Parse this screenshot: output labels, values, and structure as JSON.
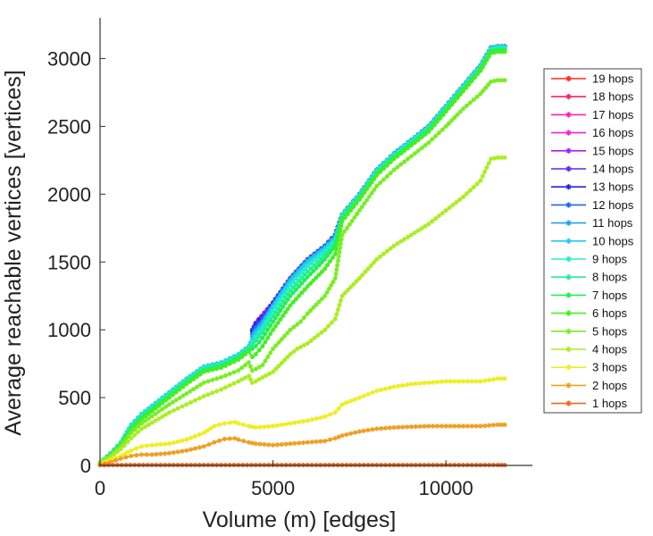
{
  "chart_data": {
    "type": "line",
    "title": "",
    "xlabel": "Volume (m) [edges]",
    "ylabel": "Average reachable vertices [vertices]",
    "xlim": [
      0,
      12500
    ],
    "ylim": [
      0,
      3300
    ],
    "xticks": [
      0,
      5000,
      10000
    ],
    "yticks": [
      0,
      500,
      1000,
      1500,
      2000,
      2500,
      3000
    ],
    "grid": false,
    "legend_position": "right",
    "marker": "asterisk",
    "series": [
      {
        "name": "19 hops",
        "color": "#ff2a1a",
        "x": [
          4500,
          5000,
          5500,
          6000,
          6500,
          6800,
          7000,
          7500,
          8000,
          8500,
          9000,
          9500,
          10000,
          10500,
          11000,
          11300,
          11500,
          11700
        ],
        "y": [
          1050,
          1200,
          1380,
          1520,
          1620,
          1700,
          1850,
          2000,
          2180,
          2300,
          2400,
          2500,
          2650,
          2800,
          2950,
          3080,
          3090,
          3090
        ]
      },
      {
        "name": "18 hops",
        "color": "#ff2060",
        "x": [
          4500,
          5000,
          5500,
          6000,
          6500,
          6800,
          7000,
          7500,
          8000,
          8500,
          9000,
          9500,
          10000,
          10500,
          11000,
          11300,
          11500,
          11700
        ],
        "y": [
          1050,
          1200,
          1380,
          1520,
          1620,
          1700,
          1850,
          2000,
          2180,
          2300,
          2400,
          2500,
          2650,
          2800,
          2950,
          3080,
          3090,
          3090
        ]
      },
      {
        "name": "17 hops",
        "color": "#ff22aa",
        "x": [
          4500,
          5000,
          5500,
          6000,
          6500,
          6800,
          7000,
          7500,
          8000,
          8500,
          9000,
          9500,
          10000,
          10500,
          11000,
          11300,
          11500,
          11700
        ],
        "y": [
          1050,
          1200,
          1380,
          1520,
          1620,
          1700,
          1850,
          2000,
          2180,
          2300,
          2400,
          2500,
          2650,
          2800,
          2950,
          3080,
          3090,
          3090
        ]
      },
      {
        "name": "16 hops",
        "color": "#ee22dd",
        "x": [
          4500,
          5000,
          5500,
          6000,
          6500,
          6800,
          7000,
          7500,
          8000,
          8500,
          9000,
          9500,
          10000,
          10500,
          11000,
          11300,
          11500,
          11700
        ],
        "y": [
          1050,
          1200,
          1380,
          1520,
          1620,
          1700,
          1850,
          2000,
          2180,
          2300,
          2400,
          2500,
          2650,
          2800,
          2950,
          3080,
          3090,
          3090
        ]
      },
      {
        "name": "15 hops",
        "color": "#aa22ee",
        "x": [
          4500,
          5000,
          5500,
          6000,
          6500,
          6800,
          7000,
          7500,
          8000,
          8500,
          9000,
          9500,
          10000,
          10500,
          11000,
          11300,
          11500,
          11700
        ],
        "y": [
          1050,
          1200,
          1380,
          1520,
          1620,
          1700,
          1850,
          2000,
          2180,
          2300,
          2400,
          2500,
          2650,
          2800,
          2950,
          3080,
          3090,
          3090
        ]
      },
      {
        "name": "14 hops",
        "color": "#6622ee",
        "x": [
          4400,
          4500,
          4600,
          4700,
          4800,
          5000,
          5500,
          6000,
          6500,
          6800,
          7000,
          7500,
          8000,
          8500,
          9000,
          9500,
          10000,
          10500,
          11000,
          11300,
          11500,
          11700
        ],
        "y": [
          1000,
          1050,
          1080,
          1100,
          1130,
          1200,
          1380,
          1520,
          1620,
          1700,
          1850,
          2000,
          2180,
          2300,
          2400,
          2500,
          2650,
          2800,
          2950,
          3080,
          3090,
          3090
        ]
      },
      {
        "name": "13 hops",
        "color": "#2222ee",
        "x": [
          4400,
          4500,
          4600,
          4700,
          4800,
          5000,
          5500,
          6000,
          6500,
          6800,
          7000,
          7500,
          8000,
          8500,
          9000,
          9500,
          10000,
          10500,
          11000,
          11300,
          11500,
          11700
        ],
        "y": [
          990,
          1040,
          1070,
          1090,
          1120,
          1200,
          1380,
          1520,
          1620,
          1700,
          1850,
          2000,
          2180,
          2300,
          2400,
          2500,
          2650,
          2800,
          2950,
          3080,
          3090,
          3090
        ]
      },
      {
        "name": "12 hops",
        "color": "#2266ee",
        "x": [
          4400,
          4500,
          4700,
          5000,
          5500,
          6000,
          6500,
          6800,
          7000,
          7500,
          8000,
          8500,
          9000,
          9500,
          10000,
          10500,
          11000,
          11300,
          11500,
          11700
        ],
        "y": [
          970,
          1020,
          1080,
          1190,
          1380,
          1520,
          1620,
          1700,
          1850,
          2000,
          2180,
          2300,
          2400,
          2500,
          2650,
          2800,
          2950,
          3080,
          3090,
          3090
        ]
      },
      {
        "name": "11 hops",
        "color": "#22a0ee",
        "x": [
          4400,
          4500,
          4700,
          5000,
          5500,
          6000,
          6500,
          6800,
          7000,
          7500,
          8000,
          8500,
          9000,
          9500,
          10000,
          10500,
          11000,
          11300,
          11500,
          11700
        ],
        "y": [
          950,
          1000,
          1060,
          1180,
          1370,
          1510,
          1610,
          1690,
          1850,
          2000,
          2180,
          2300,
          2400,
          2500,
          2650,
          2800,
          2950,
          3080,
          3090,
          3090
        ]
      },
      {
        "name": "10 hops",
        "color": "#22ccee",
        "x": [
          0,
          300,
          600,
          900,
          1200,
          1600,
          2000,
          2500,
          3000,
          3500,
          4000,
          4300,
          4400,
          4500,
          4700,
          5000,
          5500,
          6000,
          6500,
          6800,
          7000,
          7500,
          8000,
          8500,
          9000,
          9500,
          10000,
          10500,
          11000,
          11300,
          11500,
          11700
        ],
        "y": [
          20,
          90,
          170,
          300,
          380,
          460,
          540,
          640,
          730,
          760,
          820,
          880,
          930,
          980,
          1040,
          1170,
          1360,
          1500,
          1600,
          1680,
          1850,
          2000,
          2180,
          2300,
          2400,
          2500,
          2650,
          2800,
          2950,
          3080,
          3090,
          3090
        ]
      },
      {
        "name": "9 hops",
        "color": "#22eecc",
        "x": [
          0,
          300,
          600,
          900,
          1200,
          1600,
          2000,
          2500,
          3000,
          3500,
          4000,
          4300,
          4400,
          4500,
          4700,
          5000,
          5500,
          6000,
          6500,
          6800,
          7000,
          7500,
          8000,
          8500,
          9000,
          9500,
          10000,
          10500,
          11000,
          11300,
          11500,
          11700
        ],
        "y": [
          20,
          85,
          165,
          290,
          370,
          450,
          530,
          630,
          720,
          750,
          810,
          870,
          910,
          950,
          1010,
          1140,
          1330,
          1470,
          1580,
          1660,
          1840,
          1990,
          2170,
          2290,
          2390,
          2490,
          2640,
          2790,
          2940,
          3070,
          3080,
          3080
        ]
      },
      {
        "name": "8 hops",
        "color": "#22ee99",
        "x": [
          0,
          300,
          600,
          900,
          1200,
          1600,
          2000,
          2500,
          3000,
          3500,
          4000,
          4300,
          4400,
          4500,
          4700,
          5000,
          5500,
          6000,
          6500,
          6800,
          7000,
          7500,
          8000,
          8500,
          9000,
          9500,
          10000,
          10500,
          11000,
          11300,
          11500,
          11700
        ],
        "y": [
          20,
          80,
          160,
          280,
          360,
          440,
          520,
          620,
          710,
          740,
          800,
          860,
          890,
          920,
          980,
          1100,
          1290,
          1430,
          1550,
          1640,
          1830,
          1980,
          2160,
          2280,
          2380,
          2480,
          2630,
          2780,
          2930,
          3060,
          3070,
          3070
        ]
      },
      {
        "name": "7 hops",
        "color": "#22ee55",
        "x": [
          0,
          300,
          600,
          900,
          1200,
          1600,
          2000,
          2500,
          3000,
          3500,
          4000,
          4300,
          4400,
          4500,
          4700,
          5000,
          5500,
          6000,
          6500,
          6800,
          7000,
          7500,
          8000,
          8500,
          9000,
          9500,
          10000,
          10500,
          11000,
          11300,
          11500,
          11700
        ],
        "y": [
          20,
          78,
          155,
          270,
          350,
          430,
          510,
          610,
          700,
          730,
          790,
          850,
          860,
          880,
          940,
          1060,
          1250,
          1390,
          1520,
          1620,
          1820,
          1970,
          2150,
          2270,
          2370,
          2470,
          2620,
          2770,
          2920,
          3050,
          3060,
          3060
        ]
      },
      {
        "name": "6 hops",
        "color": "#44ee22",
        "x": [
          0,
          300,
          600,
          900,
          1200,
          1600,
          2000,
          2500,
          3000,
          3500,
          4000,
          4300,
          4400,
          4500,
          4700,
          5000,
          5500,
          6000,
          6500,
          6800,
          7000,
          7500,
          8000,
          8500,
          9000,
          9500,
          10000,
          10500,
          11000,
          11300,
          11500,
          11700
        ],
        "y": [
          20,
          75,
          150,
          260,
          340,
          420,
          500,
          600,
          690,
          720,
          780,
          840,
          800,
          820,
          880,
          1000,
          1180,
          1320,
          1450,
          1560,
          1800,
          1960,
          2140,
          2260,
          2360,
          2460,
          2610,
          2760,
          2910,
          3040,
          3050,
          3050
        ]
      },
      {
        "name": "5 hops",
        "color": "#77ee22",
        "x": [
          0,
          300,
          600,
          900,
          1200,
          1600,
          2000,
          2500,
          3000,
          3500,
          4000,
          4300,
          4400,
          4500,
          4700,
          5000,
          5500,
          5800,
          6000,
          6500,
          6800,
          7000,
          7500,
          8000,
          8500,
          9000,
          9500,
          10000,
          10500,
          11000,
          11300,
          11500,
          11700
        ],
        "y": [
          20,
          70,
          140,
          240,
          310,
          380,
          450,
          530,
          610,
          650,
          700,
          760,
          700,
          710,
          740,
          860,
          1000,
          1060,
          1120,
          1250,
          1380,
          1700,
          1880,
          2060,
          2180,
          2280,
          2380,
          2500,
          2630,
          2740,
          2830,
          2840,
          2840
        ]
      },
      {
        "name": "4 hops",
        "color": "#aaee22",
        "x": [
          0,
          300,
          600,
          900,
          1200,
          1600,
          2000,
          2500,
          3000,
          3500,
          4000,
          4300,
          4400,
          4500,
          4700,
          5000,
          5500,
          5700,
          6000,
          6500,
          6800,
          7000,
          7500,
          8000,
          8500,
          9000,
          9500,
          10000,
          10500,
          11000,
          11300,
          11500,
          11700
        ],
        "y": [
          15,
          60,
          120,
          200,
          270,
          330,
          390,
          450,
          510,
          560,
          620,
          660,
          610,
          620,
          650,
          690,
          820,
          860,
          900,
          1000,
          1080,
          1250,
          1380,
          1520,
          1620,
          1700,
          1780,
          1880,
          1980,
          2100,
          2260,
          2270,
          2270
        ]
      },
      {
        "name": "3 hops",
        "color": "#eeee22",
        "x": [
          0,
          300,
          600,
          900,
          1200,
          1500,
          2000,
          2500,
          3000,
          3300,
          3600,
          3900,
          4000,
          4300,
          4500,
          5000,
          5500,
          6000,
          6500,
          6800,
          7000,
          7500,
          8000,
          8500,
          9000,
          9500,
          10000,
          10500,
          11000,
          11500,
          11700
        ],
        "y": [
          10,
          40,
          70,
          110,
          140,
          150,
          160,
          190,
          240,
          290,
          310,
          320,
          310,
          290,
          280,
          290,
          310,
          330,
          360,
          390,
          450,
          500,
          550,
          580,
          600,
          610,
          620,
          620,
          620,
          640,
          640
        ]
      },
      {
        "name": "2 hops",
        "color": "#eea022",
        "x": [
          0,
          300,
          600,
          900,
          1200,
          1500,
          2000,
          2500,
          3000,
          3300,
          3600,
          3900,
          4000,
          4300,
          4500,
          5000,
          5500,
          6000,
          6500,
          6800,
          7000,
          7500,
          8000,
          8500,
          9000,
          9500,
          10000,
          10500,
          11000,
          11500,
          11700
        ],
        "y": [
          5,
          25,
          50,
          70,
          80,
          80,
          90,
          110,
          140,
          170,
          195,
          200,
          190,
          170,
          160,
          150,
          160,
          170,
          180,
          200,
          220,
          250,
          270,
          280,
          285,
          290,
          290,
          290,
          290,
          300,
          300
        ]
      },
      {
        "name": "1 hops",
        "color": "#ee6622",
        "x": [
          0,
          500,
          1000,
          1500,
          2000,
          2500,
          3000,
          3500,
          4000,
          4500,
          5000,
          5500,
          6000,
          6500,
          7000,
          7500,
          8000,
          8500,
          9000,
          9500,
          10000,
          10500,
          11000,
          11500,
          11700
        ],
        "y": [
          2,
          3,
          3,
          3,
          3,
          3,
          3,
          3,
          3,
          3,
          3,
          3,
          3,
          3,
          3,
          3,
          3,
          3,
          3,
          3,
          3,
          3,
          3,
          3,
          3
        ]
      }
    ]
  }
}
